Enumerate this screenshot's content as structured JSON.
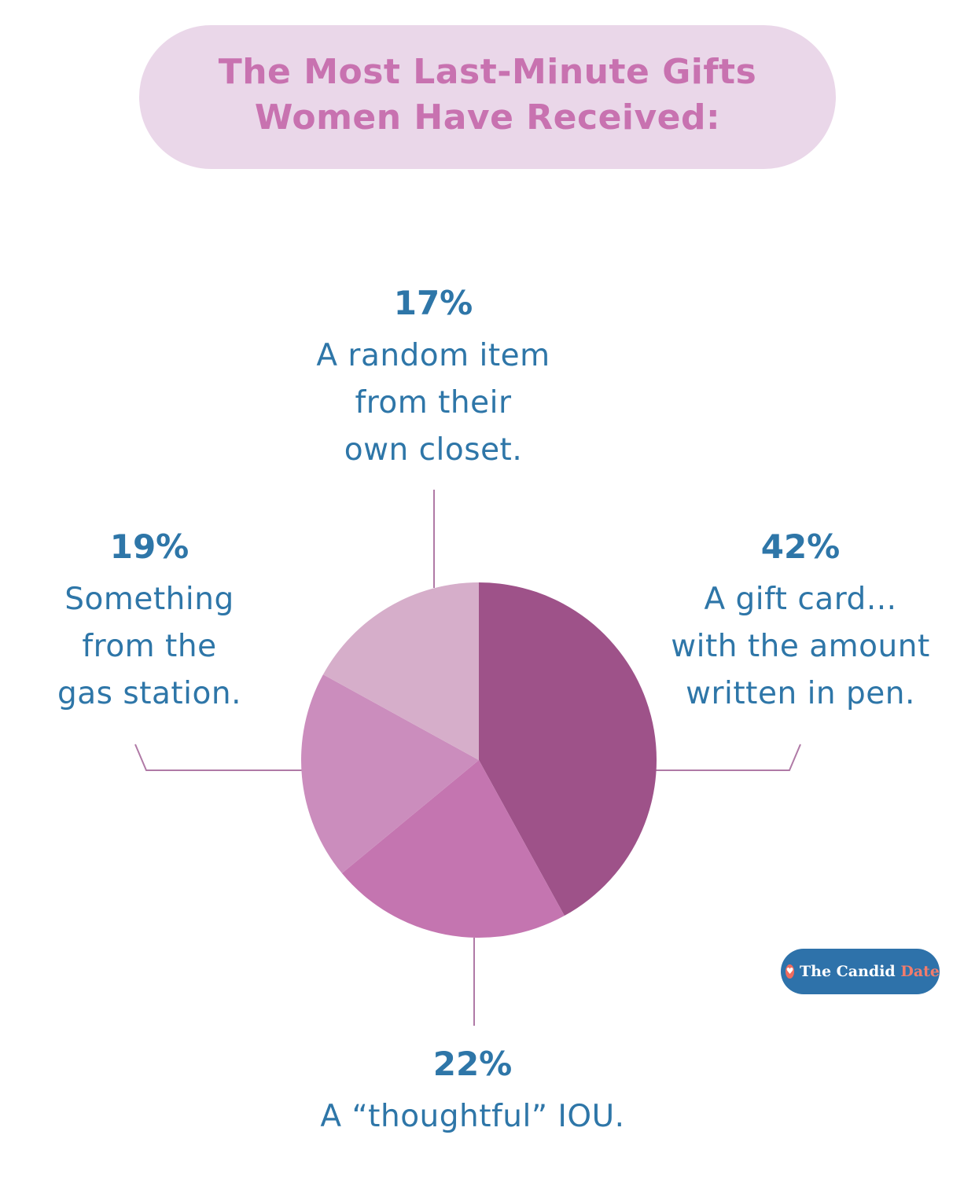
{
  "title": {
    "line1": "The Most Last-Minute Gifts",
    "line2": "Women Have Received:"
  },
  "chart_data": {
    "type": "pie",
    "categories": [
      "A gift card... with the amount written in pen.",
      "A “thoughtful” IOU.",
      "Something from the gas station.",
      "A random item from their own closet."
    ],
    "values": [
      42,
      22,
      19,
      17
    ],
    "colors": [
      "#9e5289",
      "#c475b0",
      "#cb8dbd",
      "#d6aeca"
    ],
    "title": "The Most Last-Minute Gifts Women Have Received:",
    "start_angle": "12 o'clock",
    "direction": "clockwise"
  },
  "labels": {
    "giftcard": {
      "pct": "42%",
      "lines": [
        "A gift card...",
        "with the amount",
        "written in pen."
      ]
    },
    "iou": {
      "pct": "22%",
      "lines": [
        "A “thoughtful” IOU."
      ]
    },
    "gas": {
      "pct": "19%",
      "lines": [
        "Something",
        "from the",
        "gas station."
      ]
    },
    "closet": {
      "pct": "17%",
      "lines": [
        "A random item",
        "from their",
        "own closet."
      ]
    }
  },
  "brand": {
    "name_part1": "The Candid ",
    "name_part2": "Date",
    "icon": "heart-icon"
  },
  "colors": {
    "title_text": "#c872b0",
    "title_bg": "#ead7e9",
    "label_text": "#2e76a8",
    "leader_line": "#b07aa6",
    "brand_bg": "#2e72aa",
    "brand_accent": "#f27c6c"
  }
}
